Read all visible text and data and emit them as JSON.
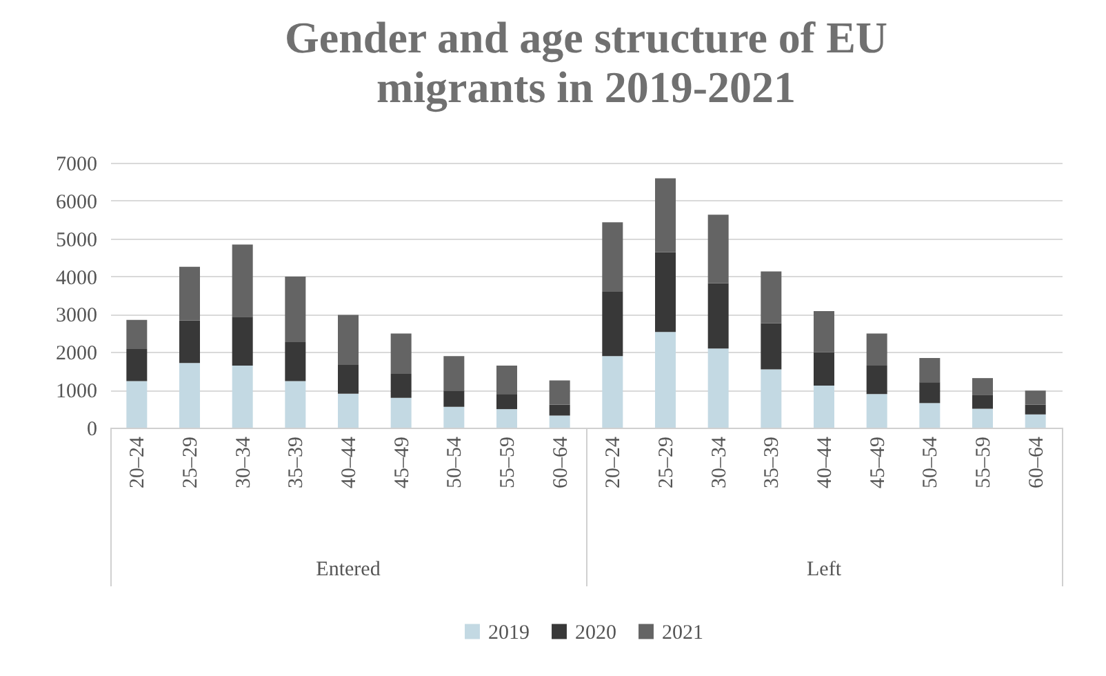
{
  "chart_data": {
    "type": "bar",
    "title": "Gender and age structure of EU migrants in 2019-2021",
    "categories": [
      "20–24",
      "25–29",
      "30–34",
      "35–39",
      "40–44",
      "45–49",
      "50–54",
      "55–59",
      "60–64",
      "20–24",
      "25–29",
      "30–34",
      "35–39",
      "40–44",
      "45–49",
      "50–54",
      "55–59",
      "60–64"
    ],
    "annotations": [
      "Entered",
      "Left"
    ],
    "stacked": true,
    "series": [
      {
        "name": "2019",
        "color": "#c3d9e3",
        "values": [
          1230,
          1710,
          1640,
          1230,
          900,
          790,
          550,
          490,
          320,
          1890,
          2530,
          2090,
          1540,
          1110,
          890,
          650,
          500,
          350
        ]
      },
      {
        "name": "2020",
        "color": "#383838",
        "values": [
          850,
          1120,
          1290,
          1030,
          760,
          630,
          430,
          400,
          290,
          1700,
          2110,
          1730,
          1220,
          880,
          750,
          550,
          370,
          260
        ]
      },
      {
        "name": "2021",
        "color": "#646464",
        "values": [
          770,
          1420,
          1910,
          1730,
          1320,
          1070,
          910,
          750,
          640,
          1840,
          1950,
          1810,
          1370,
          1090,
          850,
          640,
          440,
          370
        ]
      }
    ],
    "ylim": [
      0,
      7000
    ],
    "yticks": [
      0,
      1000,
      2000,
      3000,
      4000,
      5000,
      6000,
      7000
    ],
    "grid": "y",
    "legend": "bottom"
  }
}
